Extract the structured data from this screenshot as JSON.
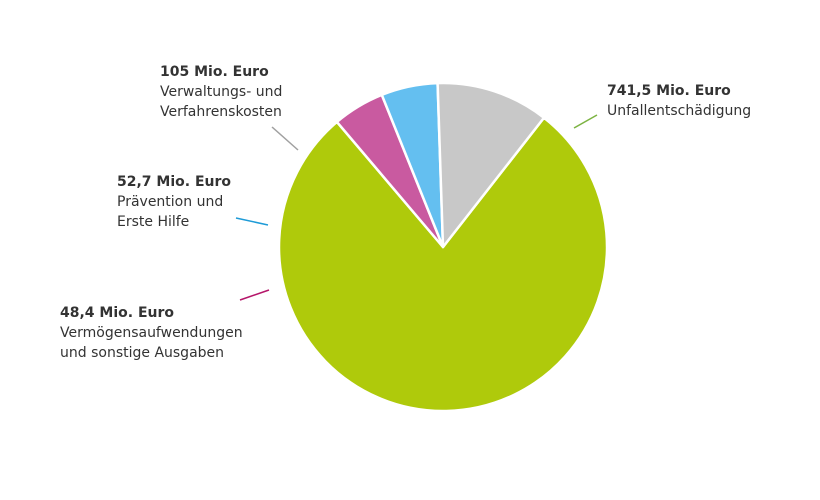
{
  "chart_data": {
    "type": "pie",
    "unit": "Mio. Euro",
    "slices": [
      {
        "value_label": "741,5 Mio. Euro",
        "value": 741.5,
        "label_lines": [
          "Unfallentschädigung"
        ],
        "color": "#afca0b",
        "leader_color": "#7cb342"
      },
      {
        "value_label": "48,4 Mio. Euro",
        "value": 48.4,
        "label_lines": [
          "Vermögensaufwendungen",
          "und sonstige Ausgaben"
        ],
        "color": "#c95aa0",
        "leader_color": "#b5166a"
      },
      {
        "value_label": "52,7 Mio. Euro",
        "value": 52.7,
        "label_lines": [
          "Prävention und",
          "Erste Hilfe"
        ],
        "color": "#64bff0",
        "leader_color": "#1e9bd7"
      },
      {
        "value_label": "105 Mio. Euro",
        "value": 105,
        "label_lines": [
          "Verwaltungs- und",
          "Verfahrenskosten"
        ],
        "color": "#c8c8c8",
        "leader_color": "#a0a0a0"
      }
    ]
  }
}
